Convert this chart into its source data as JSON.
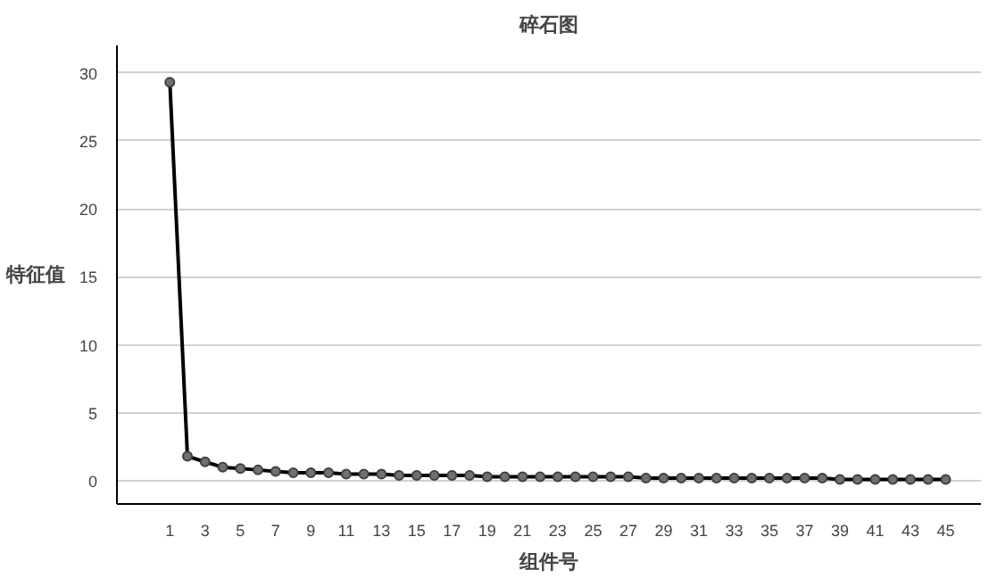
{
  "chart_data": {
    "type": "line",
    "title": "碎石图",
    "xlabel": "组件号",
    "ylabel": "特征值",
    "x": [
      1,
      2,
      3,
      4,
      5,
      6,
      7,
      8,
      9,
      10,
      11,
      12,
      13,
      14,
      15,
      16,
      17,
      18,
      19,
      20,
      21,
      22,
      23,
      24,
      25,
      26,
      27,
      28,
      29,
      30,
      31,
      32,
      33,
      34,
      35,
      36,
      37,
      38,
      39,
      40,
      41,
      42,
      43,
      44,
      45
    ],
    "series": [
      {
        "color": "#000000",
        "values": [
          29.3,
          1.8,
          1.4,
          1.0,
          0.9,
          0.8,
          0.7,
          0.6,
          0.6,
          0.6,
          0.5,
          0.5,
          0.5,
          0.4,
          0.4,
          0.4,
          0.4,
          0.4,
          0.3,
          0.3,
          0.3,
          0.3,
          0.3,
          0.3,
          0.3,
          0.3,
          0.3,
          0.2,
          0.2,
          0.2,
          0.2,
          0.2,
          0.2,
          0.2,
          0.2,
          0.2,
          0.2,
          0.2,
          0.1,
          0.1,
          0.1,
          0.1,
          0.1,
          0.1,
          0.1
        ]
      }
    ],
    "xlim": [
      -2,
      47
    ],
    "ylim": [
      -1.7,
      32
    ],
    "xticks": [
      1,
      3,
      5,
      7,
      9,
      11,
      13,
      15,
      17,
      19,
      21,
      23,
      25,
      27,
      29,
      31,
      33,
      35,
      37,
      39,
      41,
      43,
      45
    ],
    "yticks": [
      0,
      5,
      10,
      15,
      20,
      25,
      30
    ],
    "grid": "y",
    "marker": "circle",
    "line_style": "solid"
  }
}
